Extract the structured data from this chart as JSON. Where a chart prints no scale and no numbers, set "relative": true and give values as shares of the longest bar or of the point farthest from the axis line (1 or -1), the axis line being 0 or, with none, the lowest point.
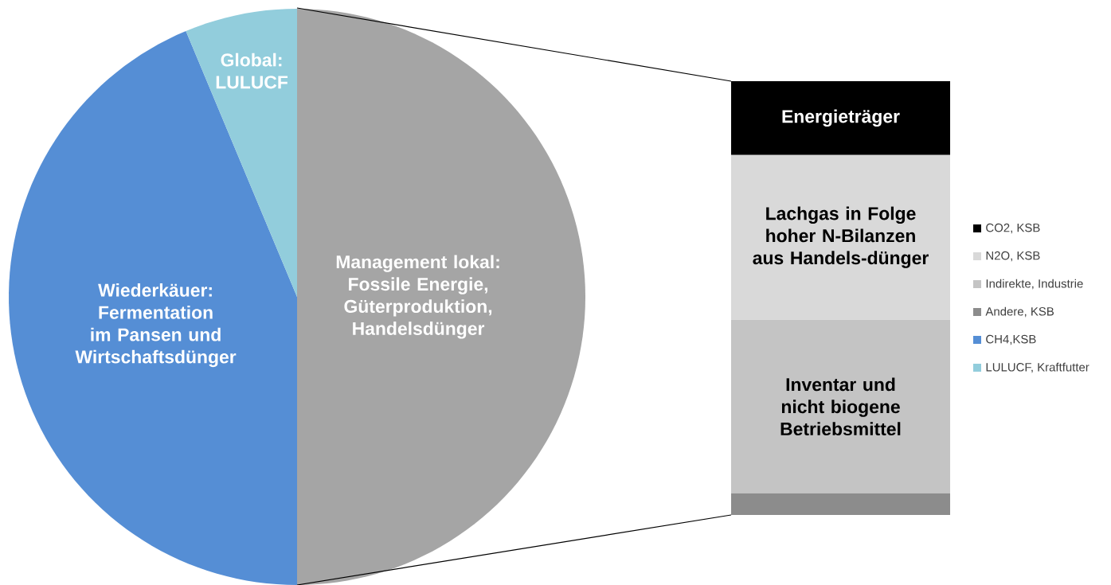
{
  "chart_data": [
    {
      "type": "pie",
      "categories": [
        "Management lokal: Fossile Energie, Güterproduktion, Handelsdünger",
        "Wiederkäuer: Fermentation im Pansen und Wirtschaftsdünger",
        "Global: LULUCF"
      ],
      "values": [
        50,
        43.7,
        6.3
      ],
      "colors": [
        "#a5a5a5",
        "#558ed5",
        "#92cddc"
      ]
    },
    {
      "type": "bar",
      "stacked": true,
      "relative": true,
      "categories": [
        null
      ],
      "legend": "right",
      "series": [
        {
          "name": "Andere, KSB",
          "color": "#8c8c8c",
          "values": [
            0.05
          ]
        },
        {
          "name": "Indirekte, Industrie",
          "color": "#c4c4c4",
          "values": [
            0.4
          ]
        },
        {
          "name": "N2O, KSB",
          "color": "#d9d9d9",
          "values": [
            0.38
          ]
        },
        {
          "name": "CO2, KSB",
          "color": "#000000",
          "values": [
            0.17
          ]
        },
        {
          "name": "CH4,KSB",
          "color": "#558ed5",
          "values": [
            null
          ]
        },
        {
          "name": "LULUCF, Kraftfutter",
          "color": "#92cddc",
          "values": [
            null
          ]
        }
      ],
      "annotations": [
        "Inventar und nicht biogene Betriebsmittel",
        "Lachgas in Folge hoher N-Bilanzen aus Handels-dünger",
        "Energieträger"
      ]
    }
  ]
}
